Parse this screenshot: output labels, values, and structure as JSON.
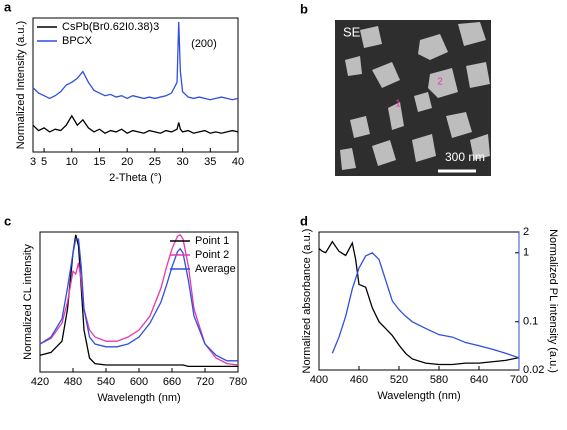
{
  "chart_data": [
    {
      "type": "line",
      "panel_label": "a",
      "x_label": "2-Theta (°)",
      "y_label": "Normalized Intensity (a.u.)",
      "annotation": "(200)",
      "x": [
        3,
        4,
        5,
        6,
        7,
        8,
        9,
        10,
        11,
        12,
        13,
        14,
        15,
        16,
        17,
        18,
        19,
        20,
        21,
        22,
        23,
        24,
        25,
        26,
        27,
        28,
        29,
        29.3,
        29.6,
        30,
        31,
        32,
        33,
        34,
        35,
        36,
        37,
        38,
        39,
        40
      ],
      "series": [
        {
          "name": "CsPb(Br0.62I0.38)3",
          "color": "#000000",
          "values": [
            0.2,
            0.16,
            0.18,
            0.15,
            0.17,
            0.16,
            0.2,
            0.27,
            0.2,
            0.24,
            0.18,
            0.15,
            0.17,
            0.14,
            0.16,
            0.15,
            0.17,
            0.14,
            0.16,
            0.15,
            0.14,
            0.16,
            0.15,
            0.14,
            0.16,
            0.15,
            0.17,
            0.22,
            0.17,
            0.15,
            0.16,
            0.14,
            0.15,
            0.16,
            0.14,
            0.15,
            0.14,
            0.15,
            0.16,
            0.15
          ]
        },
        {
          "name": "BPCX",
          "color": "#2f4fe0",
          "values": [
            0.48,
            0.44,
            0.42,
            0.4,
            0.42,
            0.45,
            0.5,
            0.52,
            0.55,
            0.6,
            0.52,
            0.46,
            0.44,
            0.42,
            0.43,
            0.41,
            0.42,
            0.4,
            0.42,
            0.41,
            0.4,
            0.41,
            0.4,
            0.41,
            0.42,
            0.44,
            0.52,
            0.97,
            0.6,
            0.45,
            0.41,
            0.4,
            0.41,
            0.4,
            0.39,
            0.4,
            0.41,
            0.4,
            0.39,
            0.4
          ]
        }
      ],
      "xlim": [
        3,
        40
      ],
      "xticks": [
        3,
        5,
        10,
        15,
        20,
        25,
        30,
        35,
        40
      ],
      "ylim": [
        0,
        1
      ],
      "legend": "top-left"
    },
    {
      "type": "image",
      "panel_label": "b",
      "detector": "SE",
      "scale_bar": "300 nm",
      "points": [
        "1",
        "2"
      ]
    },
    {
      "type": "line",
      "panel_label": "c",
      "x_label": "Wavelength (nm)",
      "y_label": "Normalized CL intensity",
      "x": [
        420,
        440,
        460,
        470,
        480,
        485,
        490,
        495,
        500,
        510,
        520,
        540,
        560,
        580,
        600,
        620,
        640,
        650,
        660,
        670,
        675,
        680,
        690,
        700,
        720,
        740,
        760,
        780
      ],
      "series": [
        {
          "name": "Point 1",
          "color": "#000000",
          "values": [
            0.12,
            0.14,
            0.22,
            0.45,
            0.85,
            0.98,
            0.9,
            0.6,
            0.3,
            0.1,
            0.06,
            0.05,
            0.05,
            0.05,
            0.05,
            0.05,
            0.05,
            0.05,
            0.05,
            0.05,
            0.05,
            0.05,
            0.04,
            0.04,
            0.04,
            0.04,
            0.04,
            0.04
          ]
        },
        {
          "name": "Point 2",
          "color": "#e838a8",
          "values": [
            0.2,
            0.24,
            0.35,
            0.5,
            0.72,
            0.7,
            0.78,
            0.65,
            0.45,
            0.3,
            0.25,
            0.22,
            0.22,
            0.25,
            0.3,
            0.4,
            0.6,
            0.75,
            0.88,
            0.97,
            0.98,
            0.95,
            0.75,
            0.45,
            0.2,
            0.1,
            0.06,
            0.05
          ]
        },
        {
          "name": "Average",
          "color": "#2f4fe0",
          "values": [
            0.2,
            0.25,
            0.38,
            0.6,
            0.85,
            0.95,
            0.95,
            0.75,
            0.45,
            0.25,
            0.2,
            0.18,
            0.18,
            0.2,
            0.25,
            0.35,
            0.5,
            0.62,
            0.75,
            0.86,
            0.88,
            0.85,
            0.65,
            0.4,
            0.2,
            0.12,
            0.08,
            0.08
          ]
        }
      ],
      "xlim": [
        420,
        780
      ],
      "xticks": [
        420,
        480,
        540,
        600,
        660,
        720,
        780
      ],
      "ylim": [
        0,
        1
      ],
      "legend": "top-right"
    },
    {
      "type": "line",
      "panel_label": "d",
      "x_label": "Wavelength (nm)",
      "y_label": "Normalized absorbance (a.u.)",
      "y2_label": "Normalized PL intensity (a.u.)",
      "series": [
        {
          "color": "#000000",
          "x": [
            400,
            405,
            410,
            420,
            430,
            440,
            450,
            455,
            460,
            470,
            480,
            490,
            500,
            510,
            520,
            530,
            540,
            560,
            580,
            600,
            620,
            640,
            660,
            680,
            700
          ],
          "values": [
            0.88,
            0.86,
            0.85,
            0.93,
            0.86,
            0.83,
            0.92,
            0.8,
            0.62,
            0.6,
            0.45,
            0.35,
            0.3,
            0.25,
            0.18,
            0.12,
            0.08,
            0.05,
            0.04,
            0.04,
            0.05,
            0.05,
            0.06,
            0.07,
            0.09
          ]
        },
        {
          "color": "#2f4fe0",
          "axis": "y2",
          "x": [
            420,
            430,
            440,
            450,
            460,
            470,
            480,
            490,
            500,
            510,
            520,
            530,
            540,
            560,
            580,
            600,
            620,
            640,
            660,
            680,
            700
          ],
          "values": [
            0.035,
            0.06,
            0.12,
            0.3,
            0.6,
            0.9,
            1.0,
            0.8,
            0.4,
            0.2,
            0.15,
            0.12,
            0.1,
            0.08,
            0.065,
            0.06,
            0.05,
            0.045,
            0.04,
            0.035,
            0.03
          ]
        }
      ],
      "xlim": [
        400,
        700
      ],
      "xticks": [
        400,
        460,
        520,
        580,
        640,
        700
      ],
      "ylim": [
        0,
        1
      ],
      "y2lim": [
        0.02,
        2
      ],
      "y2ticks": [
        0.02,
        0.1,
        1,
        2
      ],
      "y2scale": "log",
      "y2color": "#2f4fe0"
    }
  ]
}
